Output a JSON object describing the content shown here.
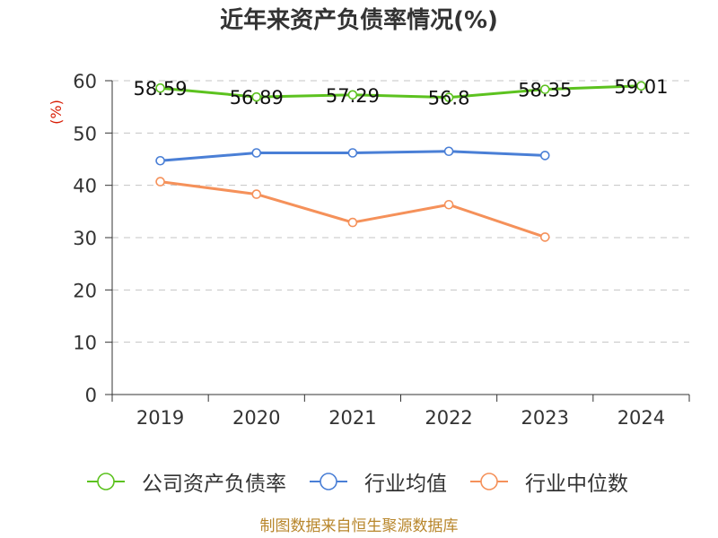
{
  "chart_data": {
    "type": "line",
    "title": "近年来资产负债率情况(%)",
    "ylabel": "(%)",
    "ylabel_color": "#d81e06",
    "xlabel": "",
    "categories": [
      "2019",
      "2020",
      "2021",
      "2022",
      "2023",
      "2024"
    ],
    "ylim": [
      0,
      60
    ],
    "yticks": [
      0,
      10,
      20,
      30,
      40,
      50,
      60
    ],
    "grid": true,
    "legend": "bottom",
    "series": [
      {
        "name": "公司资产负债率",
        "color": "#5cc21f",
        "values": [
          58.59,
          56.89,
          57.29,
          56.8,
          58.35,
          59.01
        ],
        "data_labels": true
      },
      {
        "name": "行业均值",
        "color": "#4a7fd6",
        "values": [
          44.7,
          46.2,
          46.2,
          46.5,
          45.7,
          null
        ],
        "data_labels": false
      },
      {
        "name": "行业中位数",
        "color": "#f5915a",
        "values": [
          40.7,
          38.3,
          32.9,
          36.3,
          30.1,
          null
        ],
        "data_labels": false
      }
    ]
  },
  "footer": {
    "source": "制图数据来自恒生聚源数据库"
  }
}
